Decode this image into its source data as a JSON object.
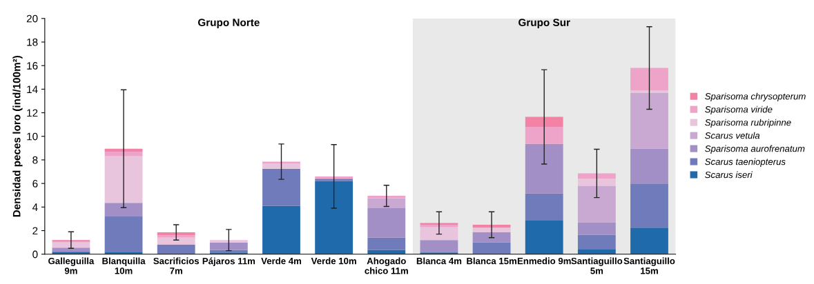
{
  "chart_data": {
    "type": "bar",
    "stacked": true,
    "ylabel": "Densidad peces loro (ind/100m²)",
    "categories": [
      "Galleguilla\n9m",
      "Blanquilla\n10m",
      "Sacrificios\n7m",
      "Pájaros 11m",
      "Verde 4m",
      "Verde 10m",
      "Ahogado\nchico 11m",
      "Blanca 4m",
      "Blanca 15m",
      "Enmedio 9m",
      "Santiaguillo\n5m",
      "Santiaguillo\n15m"
    ],
    "series": [
      {
        "name": "Scarus iseri",
        "color": "#1f6aab",
        "values": [
          0.2,
          0.2,
          0,
          0.15,
          4.1,
          6.2,
          0.35,
          0.15,
          0,
          2.9,
          0.4,
          2.25
        ]
      },
      {
        "name": "Scarus taeniopterus",
        "color": "#6f7bbb",
        "values": [
          0,
          3.05,
          0.8,
          0.2,
          3.15,
          0.2,
          1.05,
          0,
          1.0,
          2.25,
          1.25,
          3.75
        ]
      },
      {
        "name": "Sparisoma aurofrenatum",
        "color": "#a18fc6",
        "values": [
          0.35,
          1.1,
          0,
          0.65,
          0,
          0,
          2.5,
          1.05,
          0.85,
          4.2,
          1.05,
          2.95
        ]
      },
      {
        "name": "Scarus vetula",
        "color": "#c9a8d2",
        "values": [
          0,
          0,
          0,
          0,
          0,
          0,
          0.85,
          0,
          0,
          0,
          3.1,
          4.75
        ]
      },
      {
        "name": "Sparisoma rubripinne",
        "color": "#e8c4dd",
        "values": [
          0.45,
          3.95,
          0.6,
          0.2,
          0.45,
          0,
          0,
          1.1,
          0.4,
          0,
          0.6,
          0.2
        ]
      },
      {
        "name": "Sparisoma viride",
        "color": "#eea4c8",
        "values": [
          0.1,
          0.4,
          0.2,
          0,
          0.15,
          0.2,
          0.2,
          0.2,
          0,
          1.45,
          0.45,
          1.9
        ]
      },
      {
        "name": "Sparisoma chrysopterum",
        "color": "#f283a4",
        "values": [
          0.1,
          0.25,
          0.25,
          0,
          0,
          0,
          0,
          0.15,
          0.25,
          0.85,
          0,
          0
        ],
        "errors": [
          0.7,
          5.0,
          0.65,
          0.9,
          1.5,
          2.7,
          0.9,
          0.95,
          1.1,
          4.0,
          2.05,
          3.5
        ]
      }
    ],
    "ylim": [
      0,
      20
    ],
    "yticks": [
      0,
      2,
      4,
      6,
      8,
      10,
      12,
      14,
      16,
      18,
      20
    ],
    "bands": [
      {
        "axis": "x",
        "from": "Blanca 4m",
        "to": "Santiaguillo\n15m",
        "label": "Grupo Sur",
        "color": "#e9e9e9"
      }
    ],
    "annotations": [
      "Grupo Norte"
    ],
    "legend": "right",
    "grid": false
  }
}
